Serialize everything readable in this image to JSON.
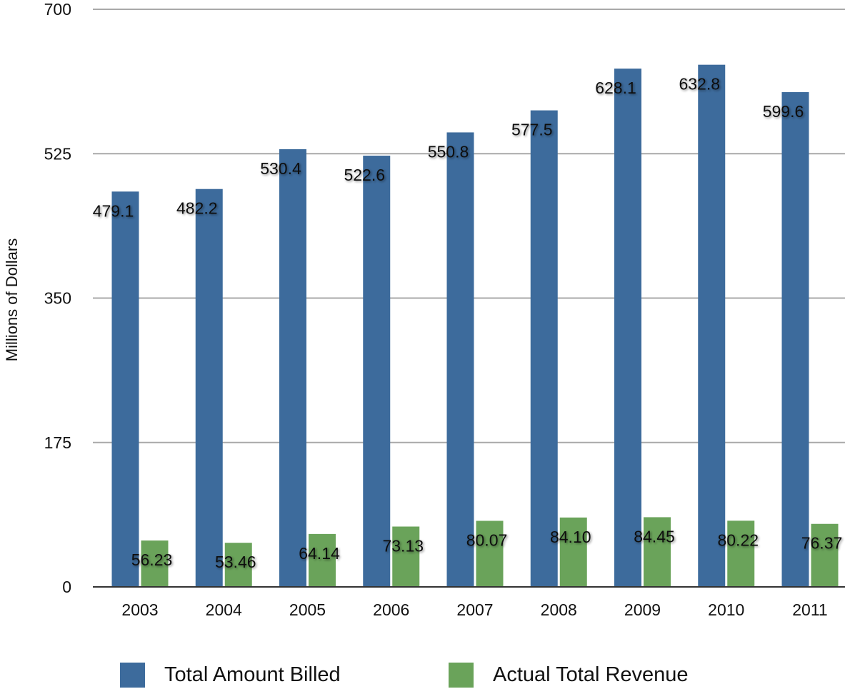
{
  "chart_data": {
    "type": "bar",
    "categories": [
      "2003",
      "2004",
      "2005",
      "2006",
      "2007",
      "2008",
      "2009",
      "2010",
      "2011"
    ],
    "series": [
      {
        "name": "Total Amount Billed",
        "color": "#3d6b9c",
        "values": [
          479.1,
          482.2,
          530.4,
          522.6,
          550.8,
          577.5,
          628.1,
          632.8,
          599.6
        ],
        "labels": [
          "479.1",
          "482.2",
          "530.4",
          "522.6",
          "550.8",
          "577.5",
          "628.1",
          "632.8",
          "599.6"
        ]
      },
      {
        "name": "Actual Total Revenue",
        "color": "#6aa35a",
        "values": [
          56.23,
          53.46,
          64.14,
          73.13,
          80.07,
          84.1,
          84.45,
          80.22,
          76.37
        ],
        "labels": [
          "56.23",
          "53.46",
          "64.14",
          "73.13",
          "80.07",
          "84.10",
          "84.45",
          "80.22",
          "76.37"
        ]
      }
    ],
    "ylabel": "Millions of Dollars",
    "xlabel": "",
    "ylim": [
      0,
      700
    ],
    "yticks": [
      "0",
      "175",
      "350",
      "525",
      "700"
    ],
    "grid": true,
    "legend_position": "bottom"
  }
}
